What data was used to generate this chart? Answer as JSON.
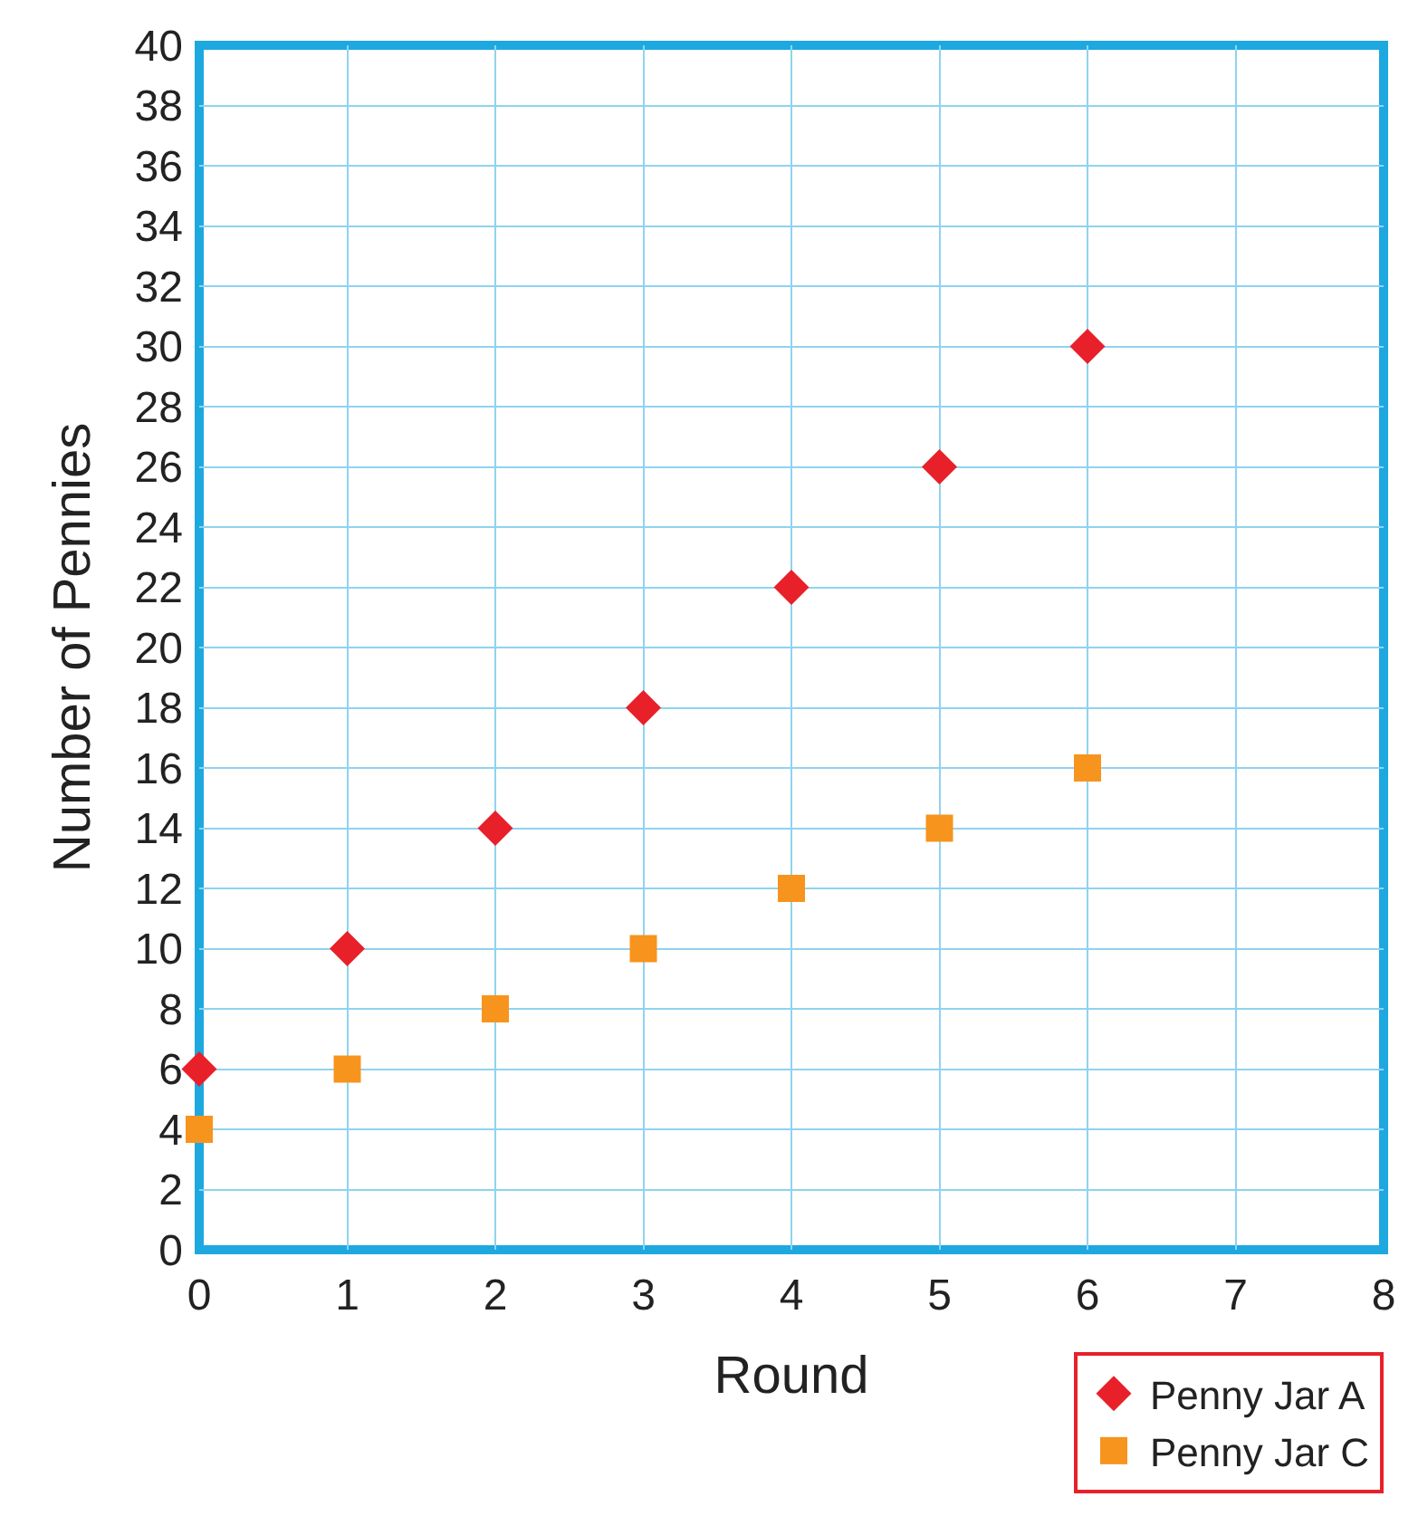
{
  "chart_data": {
    "type": "scatter",
    "xlabel": "Round",
    "ylabel": "Number of Pennies",
    "x": [
      0,
      1,
      2,
      3,
      4,
      5,
      6
    ],
    "series": [
      {
        "name": "Penny Jar A",
        "color": "#e8202a",
        "marker": "diamond",
        "values": [
          6,
          10,
          14,
          18,
          22,
          26,
          30
        ]
      },
      {
        "name": "Penny Jar C",
        "color": "#f7941d",
        "marker": "square",
        "values": [
          4,
          6,
          8,
          10,
          12,
          14,
          16
        ]
      }
    ],
    "xlim": [
      0,
      8
    ],
    "xticks": [
      0,
      1,
      2,
      3,
      4,
      5,
      6,
      7,
      8
    ],
    "ylim": [
      0,
      40
    ],
    "yticks": [
      0,
      2,
      4,
      6,
      8,
      10,
      12,
      14,
      16,
      18,
      20,
      22,
      24,
      26,
      28,
      30,
      32,
      34,
      36,
      38,
      40
    ],
    "grid": true,
    "legend": "bottom right"
  }
}
